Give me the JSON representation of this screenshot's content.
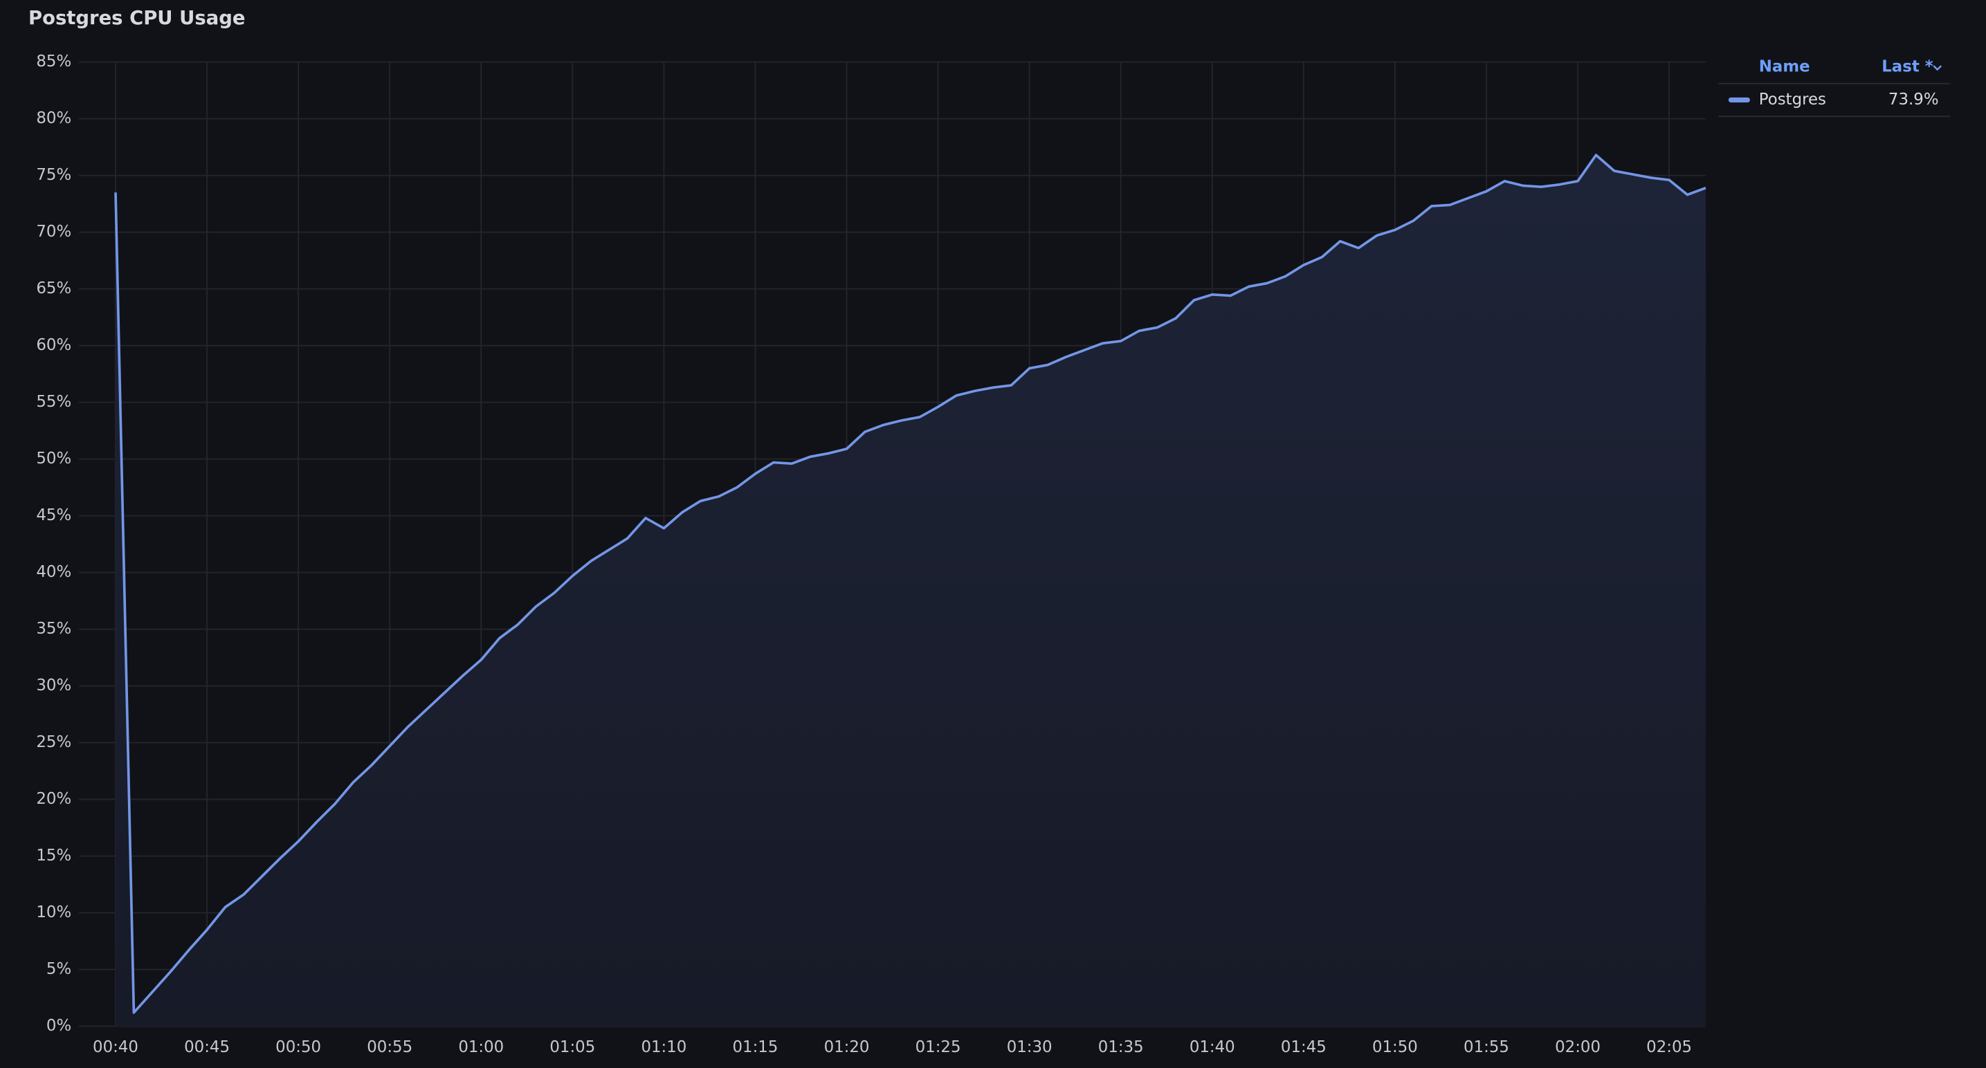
{
  "chart_data": {
    "type": "line",
    "title": "Postgres CPU Usage",
    "x": [
      "00:40",
      "00:41",
      "00:42",
      "00:43",
      "00:44",
      "00:45",
      "00:46",
      "00:47",
      "00:48",
      "00:49",
      "00:50",
      "00:51",
      "00:52",
      "00:53",
      "00:54",
      "00:55",
      "00:56",
      "00:57",
      "00:58",
      "00:59",
      "01:00",
      "01:01",
      "01:02",
      "01:03",
      "01:04",
      "01:05",
      "01:06",
      "01:07",
      "01:08",
      "01:09",
      "01:10",
      "01:11",
      "01:12",
      "01:13",
      "01:14",
      "01:15",
      "01:16",
      "01:17",
      "01:18",
      "01:19",
      "01:20",
      "01:21",
      "01:22",
      "01:23",
      "01:24",
      "01:25",
      "01:26",
      "01:27",
      "01:28",
      "01:29",
      "01:30",
      "01:31",
      "01:32",
      "01:33",
      "01:34",
      "01:35",
      "01:36",
      "01:37",
      "01:38",
      "01:39",
      "01:40",
      "01:41",
      "01:42",
      "01:43",
      "01:44",
      "01:45",
      "01:46",
      "01:47",
      "01:48",
      "01:49",
      "01:50",
      "01:51",
      "01:52",
      "01:53",
      "01:54",
      "01:55",
      "01:56",
      "01:57",
      "01:58",
      "01:59",
      "02:00",
      "02:01",
      "02:02",
      "02:03",
      "02:04",
      "02:05",
      "02:06",
      "02:07"
    ],
    "series": [
      {
        "name": "Postgres",
        "color": "#7396e6",
        "values": [
          73.5,
          1.2,
          3.0,
          4.8,
          6.7,
          8.5,
          10.5,
          11.6,
          13.2,
          14.8,
          16.3,
          18.0,
          19.6,
          21.5,
          23.0,
          24.7,
          26.4,
          27.9,
          29.4,
          30.9,
          32.3,
          34.2,
          35.4,
          37.0,
          38.2,
          39.7,
          41.0,
          42.0,
          43.0,
          44.8,
          43.9,
          45.3,
          46.3,
          46.7,
          47.5,
          48.7,
          49.7,
          49.6,
          50.2,
          50.5,
          50.9,
          52.4,
          53.0,
          53.4,
          53.7,
          54.6,
          55.6,
          56.0,
          56.3,
          56.5,
          58.0,
          58.3,
          59.0,
          59.6,
          60.2,
          60.4,
          61.3,
          61.6,
          62.4,
          64.0,
          64.5,
          64.4,
          65.2,
          65.5,
          66.1,
          67.1,
          67.8,
          69.2,
          68.6,
          69.7,
          70.2,
          71.0,
          72.3,
          72.4,
          73.0,
          73.6,
          74.5,
          74.1,
          74.0,
          74.2,
          74.5,
          76.8,
          75.4,
          75.1,
          74.8,
          74.6,
          73.3,
          73.9
        ]
      }
    ],
    "xlim": [
      "00:38",
      "02:07"
    ],
    "xticks": [
      "00:40",
      "00:45",
      "00:50",
      "00:55",
      "01:00",
      "01:05",
      "01:10",
      "01:15",
      "01:20",
      "01:25",
      "01:30",
      "01:35",
      "01:40",
      "01:45",
      "01:50",
      "01:55",
      "02:00",
      "02:05"
    ],
    "ylim": [
      0,
      85
    ],
    "yticks": [
      {
        "value": 0,
        "label": "0%"
      },
      {
        "value": 5,
        "label": "5%"
      },
      {
        "value": 10,
        "label": "10%"
      },
      {
        "value": 15,
        "label": "15%"
      },
      {
        "value": 20,
        "label": "20%"
      },
      {
        "value": 25,
        "label": "25%"
      },
      {
        "value": 30,
        "label": "30%"
      },
      {
        "value": 35,
        "label": "35%"
      },
      {
        "value": 40,
        "label": "40%"
      },
      {
        "value": 45,
        "label": "45%"
      },
      {
        "value": 50,
        "label": "50%"
      },
      {
        "value": 55,
        "label": "55%"
      },
      {
        "value": 60,
        "label": "60%"
      },
      {
        "value": 65,
        "label": "65%"
      },
      {
        "value": 70,
        "label": "70%"
      },
      {
        "value": 75,
        "label": "75%"
      },
      {
        "value": 80,
        "label": "80%"
      },
      {
        "value": 85,
        "label": "85%"
      }
    ],
    "grid": true,
    "legend": {
      "position": "right",
      "columns": [
        "Name",
        "Last *"
      ],
      "last": "73.9%"
    }
  }
}
